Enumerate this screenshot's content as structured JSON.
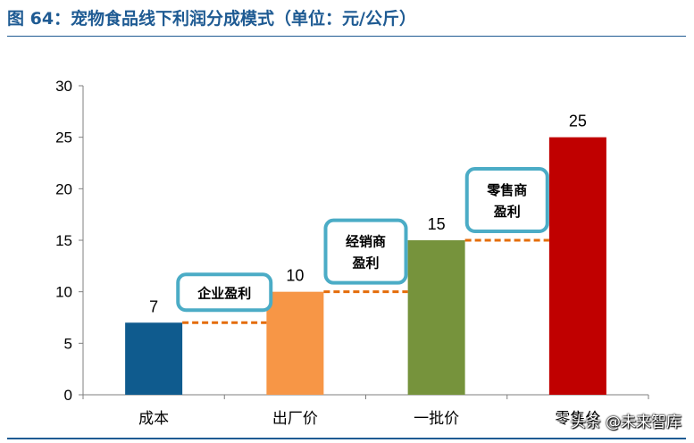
{
  "header": {
    "title": "图 64：宠物食品线下利润分成模式（单位：元/公斤）"
  },
  "watermark": {
    "text": "头条 @未来智库"
  },
  "chart_data": {
    "type": "bar",
    "categories": [
      "成本",
      "出厂价",
      "一批价",
      "零售价"
    ],
    "values": [
      7,
      10,
      15,
      25
    ],
    "colors": [
      "#0f5b8e",
      "#f79646",
      "#76933c",
      "#c00000"
    ],
    "ylim": [
      0,
      30
    ],
    "yticks": [
      0,
      5,
      10,
      15,
      20,
      25,
      30
    ],
    "data_labels": [
      "7",
      "10",
      "15",
      "25"
    ],
    "title": "",
    "xlabel": "",
    "ylabel": "",
    "connector_color": "#e46c0a",
    "annotations": [
      {
        "text": [
          "企业盈利"
        ],
        "between": [
          0,
          1
        ]
      },
      {
        "text": [
          "经销商",
          "盈利"
        ],
        "between": [
          1,
          2
        ]
      },
      {
        "text": [
          "零售商",
          "盈利"
        ],
        "between": [
          2,
          3
        ]
      }
    ],
    "grid": false
  }
}
